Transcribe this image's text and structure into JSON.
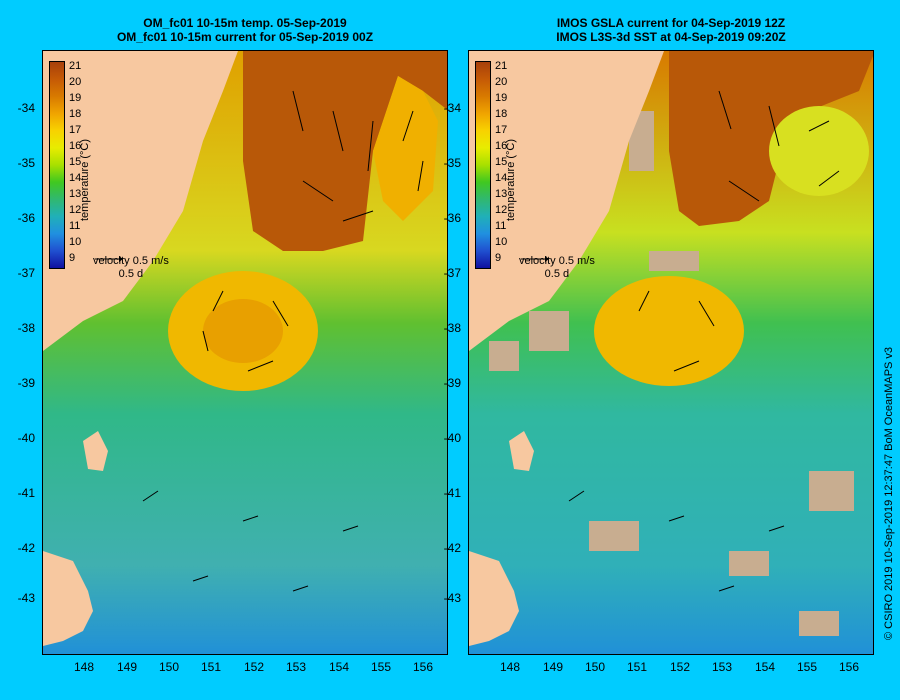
{
  "left_panel": {
    "title_line1": "OM_fc01 10-15m temp. 05-Sep-2019",
    "title_line2": "OM_fc01 10-15m current for 05-Sep-2019 00Z"
  },
  "right_panel": {
    "title_line1": "IMOS GSLA current for 04-Sep-2019 12Z",
    "title_line2": "IMOS L3S-3d SST at 04-Sep-2019 09:20Z"
  },
  "colorbar": {
    "title": "temperature (°C)",
    "ticks": [
      "21",
      "20",
      "19",
      "18",
      "17",
      "16",
      "15",
      "14",
      "13",
      "12",
      "11",
      "10",
      "9"
    ],
    "colors": [
      "#a8400a",
      "#c55a06",
      "#d87a00",
      "#f0a400",
      "#f8d200",
      "#e8ec00",
      "#a8e000",
      "#40c820",
      "#30b870",
      "#20b0b8",
      "#2090e0",
      "#2050d0",
      "#1010a0"
    ]
  },
  "velocity_legend": {
    "label": "velocity",
    "speed": "0.5 m/s",
    "duration": "0.5 d"
  },
  "axes": {
    "latitudes": [
      "-34",
      "-35",
      "-36",
      "-37",
      "-38",
      "-39",
      "-40",
      "-41",
      "-42",
      "-43"
    ],
    "longitudes": [
      "148",
      "149",
      "150",
      "151",
      "152",
      "153",
      "154",
      "155",
      "156"
    ]
  },
  "colors": {
    "land": "#f7c8a0",
    "cloud": "#c8ad90",
    "background": "#00ccff",
    "arrow": "#000000"
  },
  "credit": "© CSIRO 2019   10-Sep-2019 12:37:47 BoM OceanMAPS v3"
}
